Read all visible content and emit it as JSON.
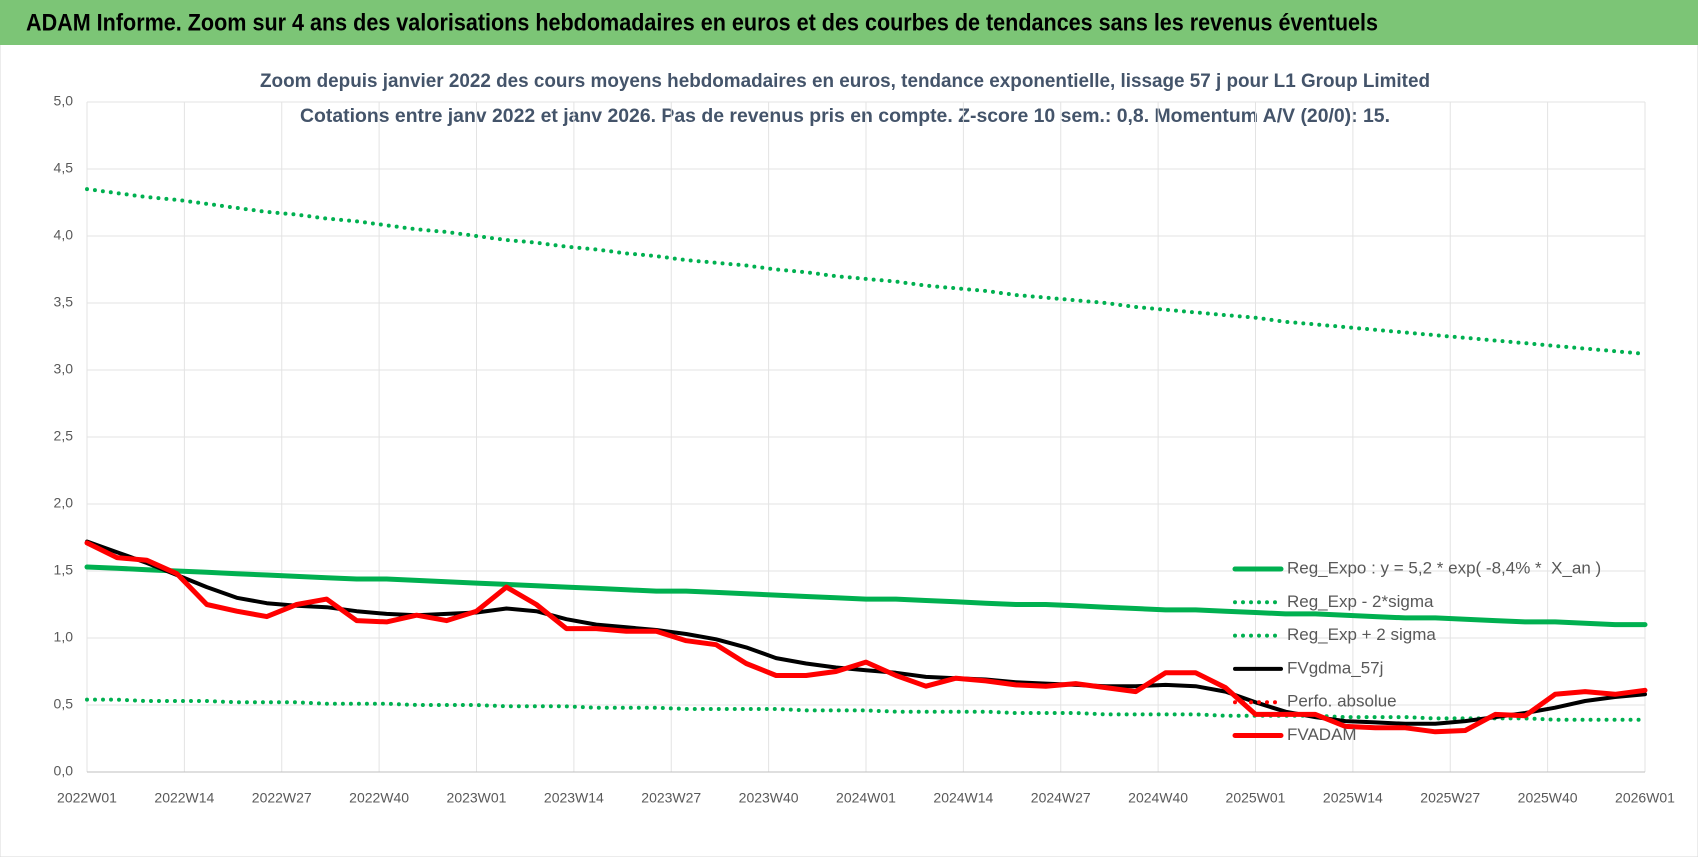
{
  "header": {
    "title": "ADAM Informe. Zoom sur 4 ans des valorisations hebdomadaires en euros et des courbes de tendances sans les revenus éventuels"
  },
  "chart_data": {
    "type": "line",
    "title": "Zoom depuis janvier 2022 des cours moyens hebdomadaires en euros, tendance exponentielle, lissage 57 j pour L1 Group Limited",
    "subtitle": "Cotations entre janv 2022 et janv 2026. Pas de revenus pris en compte. Z-score 10 sem.: 0,8. Momentum A/V (20/0): 15.",
    "x": [
      0,
      4,
      8,
      12,
      16,
      20,
      24,
      28,
      32,
      36,
      40,
      44,
      48,
      52,
      56,
      60,
      64,
      68,
      72,
      76,
      80,
      84,
      88,
      92,
      96,
      100,
      104,
      108,
      112,
      116,
      120,
      124,
      128,
      132,
      136,
      140,
      144,
      148,
      152,
      156,
      160,
      164,
      168,
      172,
      176,
      180,
      184,
      188,
      192,
      196,
      200,
      204,
      208
    ],
    "xlim": [
      0,
      208
    ],
    "xticks": [
      {
        "value": 0,
        "label": "2022W01"
      },
      {
        "value": 13,
        "label": "2022W14"
      },
      {
        "value": 26,
        "label": "2022W27"
      },
      {
        "value": 39,
        "label": "2022W40"
      },
      {
        "value": 52,
        "label": "2023W01"
      },
      {
        "value": 65,
        "label": "2023W14"
      },
      {
        "value": 78,
        "label": "2023W27"
      },
      {
        "value": 91,
        "label": "2023W40"
      },
      {
        "value": 104,
        "label": "2024W01"
      },
      {
        "value": 117,
        "label": "2024W14"
      },
      {
        "value": 130,
        "label": "2024W27"
      },
      {
        "value": 143,
        "label": "2024W40"
      },
      {
        "value": 156,
        "label": "2025W01"
      },
      {
        "value": 169,
        "label": "2025W14"
      },
      {
        "value": 182,
        "label": "2025W27"
      },
      {
        "value": 195,
        "label": "2025W40"
      },
      {
        "value": 208,
        "label": "2026W01"
      }
    ],
    "ylim": [
      0,
      5
    ],
    "yticks": [
      {
        "value": 0,
        "label": "0,0"
      },
      {
        "value": 0.5,
        "label": "0,5"
      },
      {
        "value": 1,
        "label": "1,0"
      },
      {
        "value": 1.5,
        "label": "1,5"
      },
      {
        "value": 2,
        "label": "2,0"
      },
      {
        "value": 2.5,
        "label": "2,5"
      },
      {
        "value": 3,
        "label": "3,0"
      },
      {
        "value": 3.5,
        "label": "3,5"
      },
      {
        "value": 4,
        "label": "4,0"
      },
      {
        "value": 4.5,
        "label": "4,5"
      },
      {
        "value": 5,
        "label": "5,0"
      }
    ],
    "grid": true,
    "legend": "right",
    "series": [
      {
        "name": "Reg_Expo : y = 5,2 * exp( -8,4% *  X_an )",
        "color": "#00b050",
        "style": "solid",
        "width": 5,
        "values": [
          1.53,
          1.52,
          1.51,
          1.5,
          1.49,
          1.48,
          1.47,
          1.46,
          1.45,
          1.44,
          1.44,
          1.43,
          1.42,
          1.41,
          1.4,
          1.39,
          1.38,
          1.37,
          1.36,
          1.35,
          1.35,
          1.34,
          1.33,
          1.32,
          1.31,
          1.3,
          1.29,
          1.29,
          1.28,
          1.27,
          1.26,
          1.25,
          1.25,
          1.24,
          1.23,
          1.22,
          1.21,
          1.21,
          1.2,
          1.19,
          1.18,
          1.18,
          1.17,
          1.16,
          1.15,
          1.15,
          1.14,
          1.13,
          1.12,
          1.12,
          1.11,
          1.1,
          1.1
        ]
      },
      {
        "name": "Reg_Exp - 2*sigma",
        "color": "#00b050",
        "style": "dotted",
        "width": 4,
        "values": [
          0.54,
          0.54,
          0.53,
          0.53,
          0.53,
          0.52,
          0.52,
          0.52,
          0.51,
          0.51,
          0.51,
          0.5,
          0.5,
          0.5,
          0.49,
          0.49,
          0.49,
          0.48,
          0.48,
          0.48,
          0.47,
          0.47,
          0.47,
          0.47,
          0.46,
          0.46,
          0.46,
          0.45,
          0.45,
          0.45,
          0.45,
          0.44,
          0.44,
          0.44,
          0.43,
          0.43,
          0.43,
          0.43,
          0.42,
          0.42,
          0.42,
          0.42,
          0.41,
          0.41,
          0.41,
          0.4,
          0.4,
          0.4,
          0.4,
          0.39,
          0.39,
          0.39,
          0.39
        ]
      },
      {
        "name": "Reg_Exp + 2 sigma",
        "color": "#00b050",
        "style": "dotted",
        "width": 4,
        "values": [
          4.35,
          4.32,
          4.29,
          4.27,
          4.24,
          4.21,
          4.18,
          4.16,
          4.13,
          4.11,
          4.08,
          4.05,
          4.03,
          4.0,
          3.97,
          3.95,
          3.92,
          3.9,
          3.87,
          3.85,
          3.82,
          3.8,
          3.78,
          3.75,
          3.73,
          3.7,
          3.68,
          3.66,
          3.63,
          3.61,
          3.59,
          3.56,
          3.54,
          3.52,
          3.5,
          3.47,
          3.45,
          3.43,
          3.41,
          3.39,
          3.36,
          3.34,
          3.32,
          3.3,
          3.28,
          3.26,
          3.24,
          3.22,
          3.2,
          3.18,
          3.16,
          3.14,
          3.12
        ]
      },
      {
        "name": "FVgdma_57j",
        "color": "#000000",
        "style": "solid",
        "width": 4,
        "values": [
          1.72,
          1.64,
          1.56,
          1.47,
          1.38,
          1.3,
          1.26,
          1.24,
          1.23,
          1.2,
          1.18,
          1.17,
          1.18,
          1.19,
          1.22,
          1.2,
          1.14,
          1.1,
          1.08,
          1.06,
          1.03,
          0.99,
          0.93,
          0.85,
          0.81,
          0.78,
          0.76,
          0.74,
          0.71,
          0.7,
          0.69,
          0.67,
          0.66,
          0.65,
          0.64,
          0.64,
          0.65,
          0.64,
          0.6,
          0.52,
          0.45,
          0.41,
          0.38,
          0.37,
          0.36,
          0.36,
          0.38,
          0.41,
          0.44,
          0.48,
          0.53,
          0.56,
          0.58
        ]
      },
      {
        "name": "Perfo. absolue",
        "color": "#ff0000",
        "style": "dotted",
        "width": 4,
        "values": [
          null,
          null,
          null,
          null,
          null,
          null,
          null,
          null,
          null,
          null,
          null,
          null,
          null,
          null,
          null,
          null,
          null,
          null,
          null,
          null,
          null,
          null,
          null,
          null,
          null,
          null,
          null,
          null,
          null,
          null,
          null,
          null,
          null,
          null,
          null,
          null,
          null,
          null,
          null,
          null,
          null,
          null,
          null,
          null,
          null,
          null,
          null,
          null,
          null,
          null,
          null,
          null,
          null
        ]
      },
      {
        "name": "FVADAM",
        "color": "#ff0000",
        "style": "solid",
        "width": 5,
        "values": [
          1.71,
          1.6,
          1.58,
          1.48,
          1.25,
          1.2,
          1.16,
          1.25,
          1.29,
          1.13,
          1.12,
          1.17,
          1.13,
          1.2,
          1.38,
          1.25,
          1.07,
          1.07,
          1.05,
          1.05,
          0.98,
          0.95,
          0.81,
          0.72,
          0.72,
          0.75,
          0.82,
          0.72,
          0.64,
          0.7,
          0.68,
          0.65,
          0.64,
          0.66,
          0.63,
          0.6,
          0.74,
          0.74,
          0.63,
          0.43,
          0.43,
          0.43,
          0.34,
          0.33,
          0.33,
          0.3,
          0.31,
          0.43,
          0.42,
          0.58,
          0.6,
          0.58,
          0.61
        ]
      }
    ]
  }
}
